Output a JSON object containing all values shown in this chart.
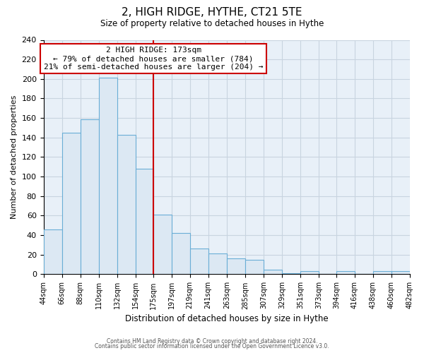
{
  "title": "2, HIGH RIDGE, HYTHE, CT21 5TE",
  "subtitle": "Size of property relative to detached houses in Hythe",
  "xlabel": "Distribution of detached houses by size in Hythe",
  "ylabel": "Number of detached properties",
  "bin_labels": [
    "44sqm",
    "66sqm",
    "88sqm",
    "110sqm",
    "132sqm",
    "154sqm",
    "175sqm",
    "197sqm",
    "219sqm",
    "241sqm",
    "263sqm",
    "285sqm",
    "307sqm",
    "329sqm",
    "351sqm",
    "373sqm",
    "394sqm",
    "416sqm",
    "438sqm",
    "460sqm",
    "482sqm"
  ],
  "bar_heights": [
    46,
    145,
    159,
    201,
    143,
    108,
    61,
    42,
    26,
    21,
    16,
    15,
    5,
    1,
    3,
    0,
    3,
    0,
    3,
    3
  ],
  "bin_edges": [
    44,
    66,
    88,
    110,
    132,
    154,
    175,
    197,
    219,
    241,
    263,
    285,
    307,
    329,
    351,
    373,
    394,
    416,
    438,
    460,
    482
  ],
  "bar_color": "#dce8f3",
  "bar_edge_color": "#6aaed6",
  "property_line_x": 175,
  "property_line_color": "#cc0000",
  "annotation_box_edge_color": "#cc0000",
  "annotation_line1": "2 HIGH RIDGE: 173sqm",
  "annotation_line2": "← 79% of detached houses are smaller (784)",
  "annotation_line3": "21% of semi-detached houses are larger (204) →",
  "ylim": [
    0,
    240
  ],
  "yticks": [
    0,
    20,
    40,
    60,
    80,
    100,
    120,
    140,
    160,
    180,
    200,
    220,
    240
  ],
  "footer1": "Contains HM Land Registry data © Crown copyright and database right 2024.",
  "footer2": "Contains public sector information licensed under the Open Government Licence v3.0.",
  "background_color": "#ffffff",
  "plot_bg_color": "#e8f0f8",
  "grid_color": "#c8d4e0"
}
